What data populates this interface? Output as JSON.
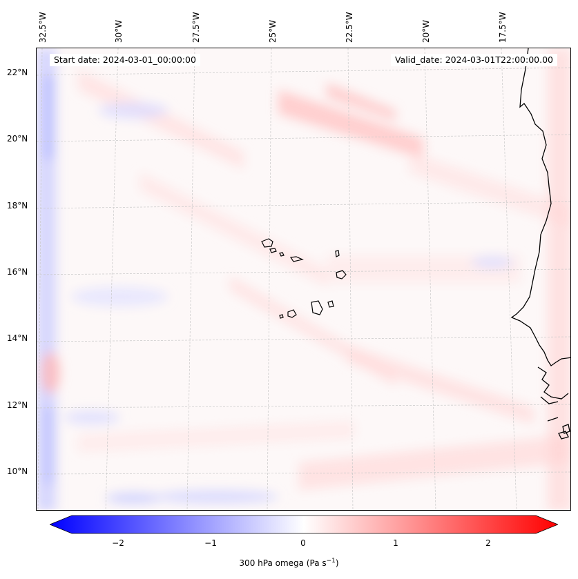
{
  "header": {
    "start_date": "Start date: 2024-03-01_00:00:00",
    "valid_date": "Valid_date: 2024-03-01T22:00:00.00"
  },
  "axes": {
    "lon_labels": [
      "32.5°W",
      "30°W",
      "27.5°W",
      "25°W",
      "22.5°W",
      "20°W",
      "17.5°W"
    ],
    "lat_labels": [
      "22°N",
      "20°N",
      "18°N",
      "16°N",
      "14°N",
      "12°N",
      "10°N"
    ]
  },
  "colorbar": {
    "ticks": [
      "−2",
      "−1",
      "0",
      "1",
      "2"
    ],
    "label_text": "300 hPa omega (Pa s",
    "label_sup": "−1",
    "label_end": ")",
    "min_color": "#0000ff",
    "mid_color": "#ffffff",
    "max_color": "#ff0000"
  },
  "colors": {
    "coast": "#000000",
    "grid": "#c8c8c8",
    "pos_field": "#ff8a8a",
    "neg_field": "#8a8aff"
  }
}
